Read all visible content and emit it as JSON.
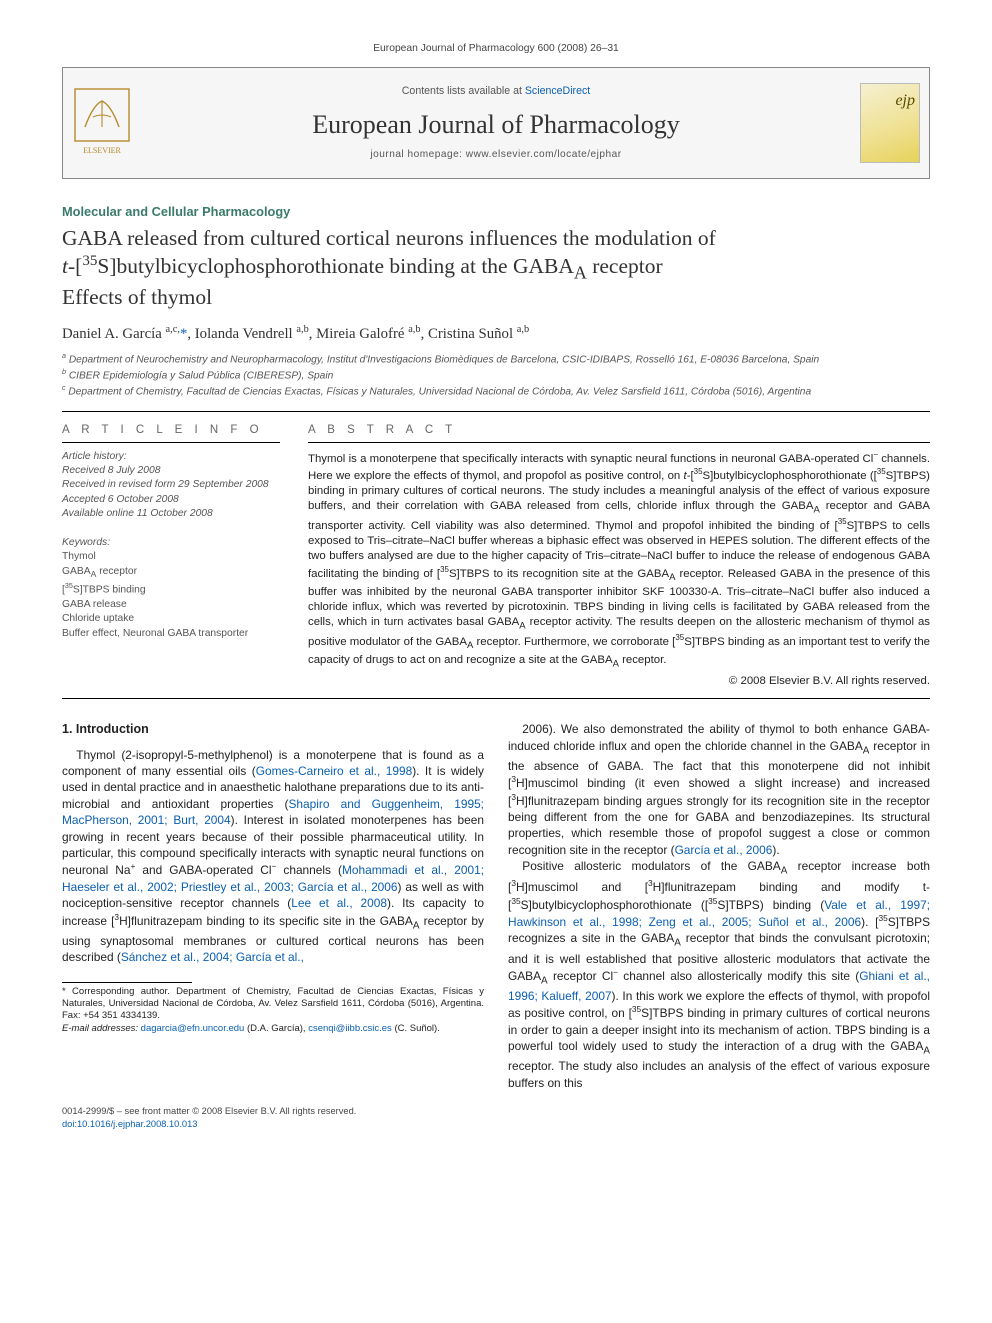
{
  "topline": {
    "journal": "European Journal of Pharmacology",
    "vol": "600 (2008) 26–31"
  },
  "headbox": {
    "contents_prefix": "Contents lists available at ",
    "sciencedirect": "ScienceDirect",
    "journal": "European Journal of Pharmacology",
    "homepage_prefix": "journal homepage: ",
    "homepage": "www.elsevier.com/locate/ejphar"
  },
  "section": "Molecular and Cellular Pharmacology",
  "title": {
    "line1": "GABA released from cultured cortical neurons influences the modulation of",
    "line2_html": "<i>t</i>-[<sup>35</sup>S]butylbicyclophosphorothionate binding at the GABA<sub>A</sub> receptor",
    "line3": "Effects of thymol"
  },
  "authors_html": "Daniel A. García <sup>a,c,</sup><span class=\"link\">*</span>, Iolanda Vendrell <sup>a,b</sup>, Mireia Galofré <sup>a,b</sup>, Cristina Suñol <sup>a,b</sup>",
  "affiliations": {
    "a": "Department of Neurochemistry and Neuropharmacology, Institut d'Investigacions Biomèdiques de Barcelona, CSIC-IDIBAPS, Rosselló 161, E-08036 Barcelona, Spain",
    "b": "CIBER Epidemiología y Salud Pública (CIBERESP), Spain",
    "c": "Department of Chemistry, Facultad de Ciencias Exactas, Físicas y Naturales, Universidad Nacional de Córdoba, Av. Velez Sarsfield 1611, Córdoba (5016), Argentina"
  },
  "info_heads": {
    "left": "A R T I C L E   I N F O",
    "right": "A B S T R A C T"
  },
  "history_label": "Article history:",
  "history": {
    "received": "Received 8 July 2008",
    "revised": "Received in revised form 29 September 2008",
    "accepted": "Accepted 6 October 2008",
    "online": "Available online 11 October 2008"
  },
  "keywords_label": "Keywords:",
  "keywords": [
    "Thymol",
    "GABA_A receptor",
    "[^35S]TBPS binding",
    "GABA release",
    "Chloride uptake",
    "Buffer effect, Neuronal GABA transporter"
  ],
  "keywords_html": [
    "Thymol",
    "GABA<sub>A</sub> receptor",
    "[<sup>35</sup>S]TBPS binding",
    "GABA release",
    "Chloride uptake",
    "Buffer effect, Neuronal GABA transporter"
  ],
  "abstract_html": "Thymol is a monoterpene that specifically interacts with synaptic neural functions in neuronal GABA-operated Cl<sup>−</sup> channels. Here we explore the effects of thymol, and propofol as positive control, on <i>t</i>-[<sup>35</sup>S]butylbicyclophosphorothionate ([<sup>35</sup>S]TBPS) binding in primary cultures of cortical neurons. The study includes a meaningful analysis of the effect of various exposure buffers, and their correlation with GABA released from cells, chloride influx through the GABA<sub>A</sub> receptor and GABA transporter activity. Cell viability was also determined. Thymol and propofol inhibited the binding of [<sup>35</sup>S]TBPS to cells exposed to Tris–citrate–NaCl buffer whereas a biphasic effect was observed in HEPES solution. The different effects of the two buffers analysed are due to the higher capacity of Tris–citrate–NaCl buffer to induce the release of endogenous GABA facilitating the binding of [<sup>35</sup>S]TBPS to its recognition site at the GABA<sub>A</sub> receptor. Released GABA in the presence of this buffer was inhibited by the neuronal GABA transporter inhibitor SKF 100330-A. Tris–citrate–NaCl buffer also induced a chloride influx, which was reverted by picrotoxinin. TBPS binding in living cells is facilitated by GABA released from the cells, which in turn activates basal GABA<sub>A</sub> receptor activity. The results deepen on the allosteric mechanism of thymol as positive modulator of the GABA<sub>A</sub> receptor. Furthermore, we corroborate [<sup>35</sup>S]TBPS binding as an important test to verify the capacity of drugs to act on and recognize a site at the GABA<sub>A</sub> receptor.",
  "copyright": "© 2008 Elsevier B.V. All rights reserved.",
  "h_intro": "1. Introduction",
  "p1_html": "Thymol (2-isopropyl-5-methylphenol) is a monoterpene that is found as a component of many essential oils (<span class=\"blue\">Gomes-Carneiro et al., 1998</span>). It is widely used in dental practice and in anaesthetic halothane preparations due to its anti-microbial and antioxidant properties (<span class=\"blue\">Shapiro and Guggenheim, 1995; MacPherson, 2001; Burt, 2004</span>). Interest in isolated monoterpenes has been growing in recent years because of their possible pharmaceutical utility. In particular, this compound specifically interacts with synaptic neural functions on neuronal Na<sup>+</sup> and GABA-operated Cl<sup>−</sup> channels (<span class=\"blue\">Mohammadi et al., 2001; Haeseler et al., 2002; Priestley et al., 2003; García et al., 2006</span>) as well as with nociception-sensitive receptor channels (<span class=\"blue\">Lee et al., 2008</span>). Its capacity to increase [<sup>3</sup>H]flunitrazepam binding to its specific site in the GABA<sub>A</sub> receptor by using synaptosomal membranes or cultured cortical neurons has been described (<span class=\"blue\">Sánchez et al., 2004; García et al.,",
  "p2_html": "2006</span>). We also demonstrated the ability of thymol to both enhance GABA-induced chloride influx and open the chloride channel in the GABA<sub>A</sub> receptor in the absence of GABA. The fact that this monoterpene did not inhibit [<sup>3</sup>H]muscimol binding (it even showed a slight increase) and increased [<sup>3</sup>H]flunitrazepam binding argues strongly for its recognition site in the receptor being different from the one for GABA and benzodiazepines. Its structural properties, which resemble those of propofol suggest a close or common recognition site in the receptor (<span class=\"blue\">García et al., 2006</span>).",
  "p3_html": "Positive allosteric modulators of the GABA<sub>A</sub> receptor increase both [<sup>3</sup>H]muscimol and [<sup>3</sup>H]flunitrazepam binding and modify t-[<sup>35</sup>S]butylbicyclophosphorothionate ([<sup>35</sup>S]TBPS) binding (<span class=\"blue\">Vale et al., 1997; Hawkinson et al., 1998; Zeng et al., 2005; Suñol et al., 2006</span>). [<sup>35</sup>S]TBPS recognizes a site in the GABA<sub>A</sub> receptor that binds the convulsant picrotoxin; and it is well established that positive allosteric modulators that activate the GABA<sub>A</sub> receptor Cl<sup>−</sup> channel also allosterically modify this site (<span class=\"blue\">Ghiani et al., 1996; Kalueff, 2007</span>). In this work we explore the effects of thymol, with propofol as positive control, on [<sup>35</sup>S]TBPS binding in primary cultures of cortical neurons in order to gain a deeper insight into its mechanism of action. TBPS binding is a powerful tool widely used to study the interaction of a drug with the GABA<sub>A</sub> receptor. The study also includes an analysis of the effect of various exposure buffers on this",
  "corresponding": {
    "label": "* Corresponding author. Department of Chemistry, Facultad de Ciencias Exactas, Físicas y Naturales, Universidad Nacional de Córdoba, Av. Velez Sarsfield 1611, Córdoba (5016), Argentina. Fax: +54 351 4334139.",
    "email_label": "E-mail addresses:",
    "email1": "dagarcia@efn.uncor.edu",
    "email1_name": "(D.A. García),",
    "email2": "csenqi@iibb.csic.es",
    "email2_name": "(C. Suñol)."
  },
  "bottom": {
    "issn": "0014-2999/$ – see front matter © 2008 Elsevier B.V. All rights reserved.",
    "doi": "doi:10.1016/j.ejphar.2008.10.013"
  },
  "colors": {
    "teal": "#3a7a6a",
    "link": "#0b5fb0",
    "text": "#222222",
    "grey": "#555555"
  }
}
